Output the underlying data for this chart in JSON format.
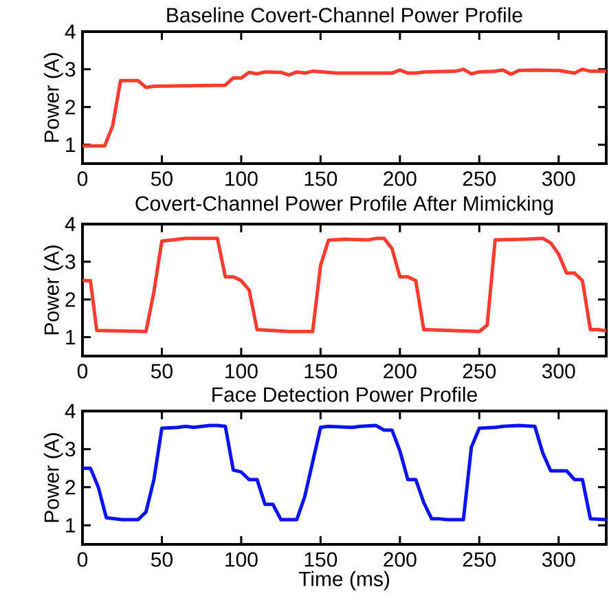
{
  "chart_data": [
    {
      "type": "line",
      "title": "Baseline Covert-Channel Power Profile",
      "ylabel": "Power (A)",
      "color": "#ff3b30",
      "xlim": [
        0,
        330
      ],
      "ylim": [
        0.5,
        4
      ],
      "xticks": [
        0,
        50,
        100,
        150,
        200,
        250,
        300
      ],
      "yticks": [
        1,
        2,
        3,
        4
      ],
      "x": [
        0,
        14,
        19,
        24,
        35,
        40,
        45,
        90,
        95,
        100,
        105,
        110,
        115,
        125,
        130,
        135,
        140,
        145,
        160,
        180,
        195,
        200,
        205,
        210,
        215,
        235,
        240,
        245,
        250,
        260,
        265,
        270,
        275,
        285,
        300,
        310,
        315,
        320,
        330
      ],
      "values": [
        0.97,
        0.97,
        1.5,
        2.7,
        2.7,
        2.52,
        2.55,
        2.58,
        2.77,
        2.77,
        2.92,
        2.88,
        2.93,
        2.92,
        2.85,
        2.93,
        2.9,
        2.95,
        2.9,
        2.9,
        2.9,
        2.98,
        2.9,
        2.9,
        2.93,
        2.95,
        3.0,
        2.88,
        2.93,
        2.95,
        2.98,
        2.87,
        2.97,
        2.98,
        2.97,
        2.9,
        3.0,
        2.95,
        2.95
      ]
    },
    {
      "type": "line",
      "title": "Covert-Channel Power Profile After Mimicking",
      "ylabel": "Power (A)",
      "color": "#ff3b30",
      "xlim": [
        0,
        330
      ],
      "ylim": [
        0.5,
        4
      ],
      "xticks": [
        0,
        50,
        100,
        150,
        200,
        250,
        300
      ],
      "yticks": [
        1,
        2,
        3,
        4
      ],
      "x": [
        0,
        5,
        9,
        40,
        45,
        50,
        65,
        85,
        90,
        95,
        100,
        105,
        110,
        130,
        145,
        150,
        155,
        165,
        180,
        185,
        190,
        195,
        200,
        205,
        210,
        215,
        250,
        255,
        260,
        280,
        290,
        295,
        300,
        305,
        310,
        315,
        320,
        325,
        330
      ],
      "values": [
        2.5,
        2.5,
        1.18,
        1.15,
        2.2,
        3.55,
        3.62,
        3.62,
        2.6,
        2.6,
        2.5,
        2.25,
        1.2,
        1.15,
        1.15,
        2.9,
        3.57,
        3.6,
        3.58,
        3.62,
        3.62,
        3.35,
        2.6,
        2.6,
        2.5,
        1.2,
        1.15,
        1.32,
        3.58,
        3.6,
        3.62,
        3.5,
        3.2,
        2.7,
        2.7,
        2.5,
        1.2,
        1.2,
        1.17
      ]
    },
    {
      "type": "line",
      "title": "Face Detection Power Profile",
      "ylabel": "Power (A)",
      "xlabel": "Time (ms)",
      "color": "#0a14f0",
      "xlim": [
        0,
        330
      ],
      "ylim": [
        0.5,
        4
      ],
      "xticks": [
        0,
        50,
        100,
        150,
        200,
        250,
        300
      ],
      "yticks": [
        1,
        2,
        3,
        4
      ],
      "x": [
        0,
        5,
        10,
        15,
        25,
        35,
        40,
        45,
        50,
        60,
        65,
        70,
        80,
        85,
        90,
        95,
        100,
        105,
        110,
        115,
        120,
        125,
        135,
        140,
        150,
        155,
        170,
        175,
        185,
        190,
        195,
        200,
        205,
        210,
        215,
        220,
        225,
        230,
        240,
        245,
        250,
        260,
        265,
        275,
        285,
        290,
        295,
        305,
        310,
        315,
        320,
        330
      ],
      "values": [
        2.5,
        2.5,
        2.0,
        1.2,
        1.15,
        1.15,
        1.35,
        2.2,
        3.55,
        3.57,
        3.6,
        3.57,
        3.62,
        3.62,
        3.6,
        2.45,
        2.4,
        2.2,
        2.2,
        1.55,
        1.55,
        1.15,
        1.15,
        1.75,
        3.57,
        3.6,
        3.57,
        3.6,
        3.62,
        3.5,
        3.5,
        2.95,
        2.2,
        2.2,
        1.6,
        1.17,
        1.17,
        1.15,
        1.15,
        3.05,
        3.55,
        3.57,
        3.6,
        3.62,
        3.6,
        2.9,
        2.43,
        2.43,
        2.2,
        2.2,
        1.17,
        1.15
      ]
    }
  ]
}
